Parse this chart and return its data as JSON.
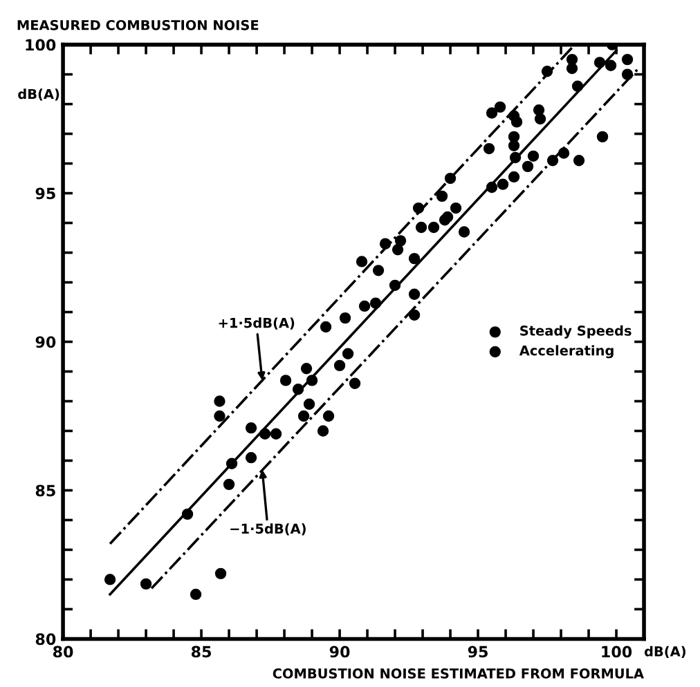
{
  "chart_data": {
    "type": "scatter",
    "xlabel": "COMBUSTION NOISE ESTIMATED FROM FORMULA",
    "ylabel": "MEASURED COMBUSTION NOISE",
    "xlim": [
      80,
      101
    ],
    "ylim": [
      80,
      100
    ],
    "xticks": [
      80,
      {
        "value": 81,
        "label": null
      },
      {
        "value": 82,
        "label": null
      },
      {
        "value": 83,
        "label": null
      },
      {
        "value": 84,
        "label": null
      },
      85,
      {
        "value": 86,
        "label": null
      },
      {
        "value": 87,
        "label": null
      },
      {
        "value": 88,
        "label": null
      },
      {
        "value": 89,
        "label": null
      },
      90,
      {
        "value": 91,
        "label": null
      },
      {
        "value": 92,
        "label": null
      },
      {
        "value": 93,
        "label": null
      },
      {
        "value": 94,
        "label": null
      },
      95,
      {
        "value": 96,
        "label": null
      },
      {
        "value": 97,
        "label": null
      },
      {
        "value": 98,
        "label": null
      },
      {
        "value": 99,
        "label": null
      },
      100
    ],
    "yticks": [
      80,
      {
        "value": 81,
        "label": null
      },
      {
        "value": 82,
        "label": null
      },
      {
        "value": 83,
        "label": null
      },
      {
        "value": 84,
        "label": null
      },
      85,
      {
        "value": 86,
        "label": null
      },
      {
        "value": 87,
        "label": null
      },
      {
        "value": 88,
        "label": null
      },
      {
        "value": 89,
        "label": null
      },
      90,
      {
        "value": 91,
        "label": null
      },
      {
        "value": 92,
        "label": null
      },
      {
        "value": 93,
        "label": null
      },
      {
        "value": 94,
        "label": null
      },
      95,
      {
        "value": 96,
        "label": null
      },
      {
        "value": 97,
        "label": null
      },
      {
        "value": 98,
        "label": null
      },
      {
        "value": 99,
        "label": null
      },
      100
    ],
    "grid": false,
    "legend": "right",
    "annotations": [
      "dB(A)",
      "dB(A)",
      {
        "text": "+1·5dB(A)",
        "x": 87.2,
        "y": 88.7
      },
      {
        "text": "−1·5dB(A)",
        "x": 87.2,
        "y": 85.7
      }
    ],
    "series": [
      {
        "name": "Steady Speeds",
        "color": "#000000",
        "marker": "circle",
        "x": [
          85.66,
          85.66,
          86.0,
          86.1,
          86.8,
          87.3,
          87.7,
          88.05,
          88.5,
          88.8,
          89.0,
          88.9,
          89.4,
          89.6,
          90.0,
          90.3,
          90.55,
          90.2,
          90.8,
          90.9,
          92.0,
          92.7,
          92.7,
          91.65,
          92.2,
          92.1,
          92.7,
          92.85,
          92.95,
          93.4,
          93.9,
          94.2,
          93.7,
          94.0,
          95.4,
          95.5,
          95.9,
          95.5,
          95.8,
          96.3,
          96.4,
          96.3,
          96.3,
          96.35,
          96.8,
          97.0,
          97.2,
          97.25,
          98.1,
          98.65,
          97.5,
          98.4,
          98.4,
          98.6,
          99.4,
          99.85,
          100.4,
          100.4
        ],
        "values": [
          88.0,
          87.5,
          85.2,
          85.9,
          86.1,
          86.9,
          86.9,
          88.7,
          88.4,
          89.1,
          88.7,
          87.9,
          87.0,
          87.5,
          89.2,
          89.6,
          88.6,
          90.8,
          92.7,
          91.2,
          91.9,
          91.6,
          90.9,
          93.3,
          93.4,
          93.1,
          92.8,
          94.5,
          93.85,
          93.85,
          94.2,
          94.5,
          94.9,
          95.5,
          96.5,
          95.2,
          95.3,
          97.7,
          97.9,
          97.6,
          97.4,
          96.9,
          96.6,
          96.2,
          95.9,
          96.25,
          97.8,
          97.5,
          96.35,
          96.1,
          99.1,
          99.2,
          99.5,
          98.6,
          99.4,
          100.0,
          99.5,
          99.0
        ]
      },
      {
        "name": "Accelerating",
        "color": "#000000",
        "marker": "circle",
        "x": [
          81.7,
          83.0,
          84.5,
          84.8,
          85.7,
          86.8,
          88.7,
          89.5,
          91.4,
          91.3,
          93.8,
          94.5,
          96.3,
          97.7,
          99.5,
          99.8
        ],
        "values": [
          82.0,
          81.85,
          84.2,
          81.5,
          82.2,
          87.1,
          87.5,
          90.5,
          92.4,
          91.3,
          94.1,
          93.7,
          95.55,
          96.1,
          96.9,
          99.3
        ]
      },
      {
        "type": "line",
        "color": "#000000",
        "line_style": "solid",
        "x": [
          81.7,
          100.0
        ],
        "values": [
          81.5,
          99.8
        ]
      },
      {
        "type": "line",
        "color": "#000000",
        "line_style": "dashdot",
        "x": [
          81.7,
          98.5
        ],
        "values": [
          83.2,
          100.0
        ]
      },
      {
        "type": "line",
        "color": "#000000",
        "line_style": "dashdot",
        "x": [
          83.2,
          100.8
        ],
        "values": [
          81.7,
          99.2
        ]
      }
    ]
  }
}
